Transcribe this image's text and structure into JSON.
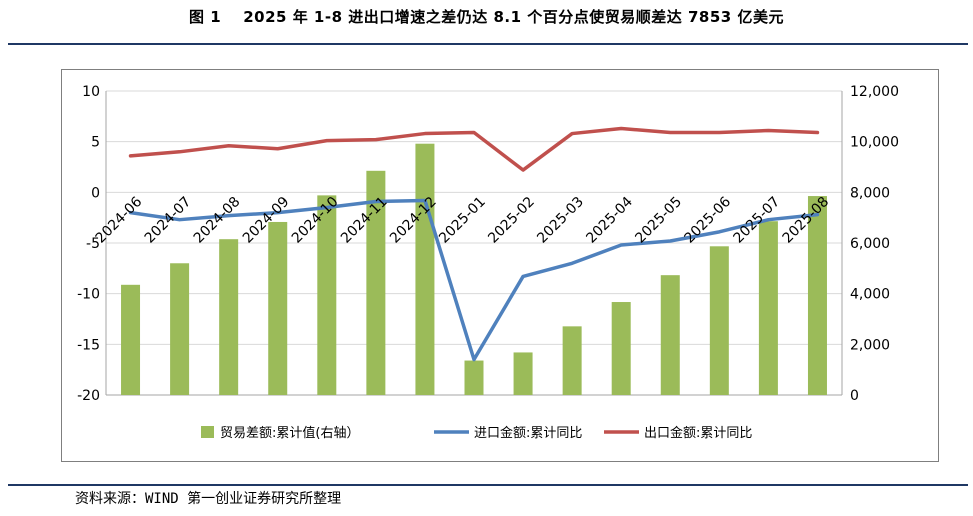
{
  "header": {
    "figure_label": "图 1",
    "title": "2025 年 1-8 进出口增速之差仍达 8.1 个百分点使贸易顺差达 7853 亿美元"
  },
  "source_note": "资料来源：WIND   第一创业证券研究所整理",
  "colors": {
    "bar": "#9bbb59",
    "import_line": "#4f81bd",
    "export_line": "#c0504d",
    "rule": "#1f3864",
    "grid": "#d9d9d9"
  },
  "chart_data": {
    "type": "bar",
    "categories": [
      "2024-06",
      "2024-07",
      "2024-08",
      "2024-09",
      "2024-10",
      "2024-11",
      "2024-12",
      "2025-01",
      "2025-02",
      "2025-03",
      "2025-04",
      "2025-05",
      "2025-06",
      "2025-07",
      "2025-08"
    ],
    "left_axis": {
      "ylim": [
        -20,
        10
      ],
      "ticks": [
        "10",
        "5",
        "0",
        "-5",
        "-10",
        "-15",
        "-20"
      ]
    },
    "right_axis": {
      "ylim": [
        0,
        12000
      ],
      "ticks": [
        "12,000",
        "10,000",
        "8,000",
        "6,000",
        "4,000",
        "2,000",
        "0"
      ]
    },
    "series": [
      {
        "name": "贸易差额:累计值(右轴）",
        "type": "bar",
        "axis": "right",
        "values": [
          4350,
          5200,
          6150,
          6830,
          7880,
          8850,
          9920,
          1360,
          1680,
          2710,
          3670,
          4730,
          5870,
          6860,
          7853
        ]
      },
      {
        "name": "进口金额:累计同比",
        "type": "line",
        "axis": "left",
        "values": [
          -2.0,
          -2.7,
          -2.3,
          -2.0,
          -1.5,
          -0.9,
          -0.8,
          -16.5,
          -8.3,
          -7.0,
          -5.2,
          -4.8,
          -3.9,
          -2.7,
          -2.2
        ]
      },
      {
        "name": "出口金额:累计同比",
        "type": "line",
        "axis": "left",
        "values": [
          3.6,
          4.0,
          4.6,
          4.3,
          5.1,
          5.2,
          5.8,
          5.9,
          2.2,
          5.8,
          6.3,
          5.9,
          5.9,
          6.1,
          5.9
        ]
      }
    ]
  }
}
